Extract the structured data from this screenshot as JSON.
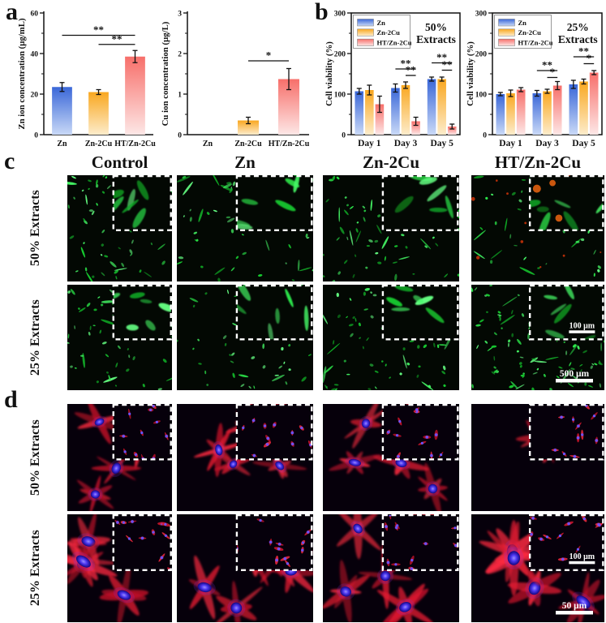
{
  "figure": {
    "panel_a_label": "a",
    "panel_b_label": "b",
    "panel_c_label": "c",
    "panel_d_label": "d",
    "column_headers": [
      "Control",
      "Zn",
      "Zn-2Cu",
      "HT/Zn-2Cu"
    ],
    "row_label_50": "50% Extracts",
    "row_label_25": "25% Extracts"
  },
  "colors": {
    "bar_gradients": {
      "Zn": [
        "#3a67d8",
        "#c9d9f7"
      ],
      "Zn-2Cu": [
        "#f9a71f",
        "#fdeccb"
      ],
      "HT/Zn-2Cu": [
        "#f76f6a",
        "#fde7e6"
      ]
    },
    "axis": "#111111",
    "live_green_palette": [
      "#16c92f",
      "#2be449",
      "#44f564",
      "#0fa824",
      "#63fb80"
    ],
    "dead_red": "#d03408",
    "inset_dead_orange": "#e0600f",
    "actin_red_palette": [
      "#e01830",
      "#c01028",
      "#ff2a40"
    ],
    "nucleus_blue_core": "#9b8cff",
    "nucleus_blue_mid": "#4b36f0",
    "nucleus_blue_edge": "#14077d",
    "scale_bar_white": "#ffffff"
  },
  "chart_data": [
    {
      "id": "zn-ion-concentration",
      "type": "bar",
      "grouped": false,
      "ylabel": "Zn ion concentration (μg/mL)",
      "categories": [
        "Zn",
        "Zn-2Cu",
        "HT/Zn-2Cu"
      ],
      "values": [
        23.5,
        21,
        38.5
      ],
      "errors": [
        2.2,
        1.2,
        3
      ],
      "ylim": [
        0,
        60
      ],
      "yticks": [
        0,
        20,
        40,
        60
      ],
      "minor_step": 10,
      "frame": "axes",
      "significance": [
        {
          "pair": [
            0,
            2
          ],
          "y": 49,
          "label": "**"
        },
        {
          "pair": [
            1,
            2
          ],
          "y": 44.5,
          "label": "**"
        }
      ]
    },
    {
      "id": "cu-ion-concentration",
      "type": "bar",
      "grouped": false,
      "ylabel": "Cu ion concentration (μg/L)",
      "categories": [
        "Zn",
        "Zn-2Cu",
        "HT/Zn-2Cu"
      ],
      "values": [
        0,
        0.35,
        1.37
      ],
      "errors": [
        0,
        0.08,
        0.26
      ],
      "ylim": [
        0,
        3
      ],
      "yticks": [
        0,
        1,
        2,
        3
      ],
      "minor_step": 0.5,
      "frame": "axes",
      "significance": [
        {
          "pair": [
            1,
            2
          ],
          "y": 1.82,
          "label": "*"
        }
      ]
    },
    {
      "id": "cell-viability-50-extracts",
      "type": "bar",
      "grouped": true,
      "ylabel": "Cell viability (%)",
      "categories": [
        "Day 1",
        "Day 3",
        "Day 5"
      ],
      "series": [
        {
          "name": "Zn",
          "values": [
            107,
            115,
            137
          ],
          "errors": [
            7,
            10,
            5
          ]
        },
        {
          "name": "Zn-2Cu",
          "values": [
            110,
            122,
            137
          ],
          "errors": [
            12,
            8,
            5
          ]
        },
        {
          "name": "HT/Zn-2Cu",
          "values": [
            75,
            33,
            20
          ],
          "errors": [
            20,
            10,
            6
          ]
        }
      ],
      "ylim": [
        0,
        300
      ],
      "yticks": [
        0,
        100,
        200,
        300
      ],
      "minor_step": 50,
      "frame": "box",
      "legend": true,
      "legend_position": "top-left",
      "annotation": "50% Extracts",
      "significance": [
        {
          "category": "Day 3",
          "pair": [
            0,
            2
          ],
          "y": 162,
          "label": "**"
        },
        {
          "category": "Day 3",
          "pair": [
            1,
            2
          ],
          "y": 146,
          "label": "**"
        },
        {
          "category": "Day 5",
          "pair": [
            0,
            2
          ],
          "y": 177,
          "label": "**"
        },
        {
          "category": "Day 5",
          "pair": [
            1,
            2
          ],
          "y": 159,
          "label": "**"
        }
      ]
    },
    {
      "id": "cell-viability-25-extracts",
      "type": "bar",
      "grouped": true,
      "ylabel": "Cell viability (%)",
      "categories": [
        "Day 1",
        "Day 3",
        "Day 5"
      ],
      "series": [
        {
          "name": "Zn",
          "values": [
            100,
            102,
            124
          ],
          "errors": [
            4,
            7,
            10
          ]
        },
        {
          "name": "Zn-2Cu",
          "values": [
            102,
            107,
            131
          ],
          "errors": [
            8,
            5,
            6
          ]
        },
        {
          "name": "HT/Zn-2Cu",
          "values": [
            111,
            121,
            153
          ],
          "errors": [
            5,
            10,
            5
          ]
        }
      ],
      "ylim": [
        0,
        300
      ],
      "yticks": [
        0,
        100,
        200,
        300
      ],
      "minor_step": 50,
      "frame": "box",
      "legend": true,
      "legend_position": "top-left",
      "annotation": "25% Extracts",
      "significance": [
        {
          "category": "Day 3",
          "pair": [
            0,
            2
          ],
          "y": 158,
          "label": "**"
        },
        {
          "category": "Day 3",
          "pair": [
            1,
            2
          ],
          "y": 141,
          "label": "*"
        },
        {
          "category": "Day 5",
          "pair": [
            0,
            2
          ],
          "y": 192,
          "label": "**"
        },
        {
          "category": "Day 5",
          "pair": [
            1,
            2
          ],
          "y": 175,
          "label": "*"
        }
      ]
    }
  ],
  "micrographs": [
    {
      "name": "c-50-control",
      "panel": "c",
      "extract": "50% Extracts",
      "sample": "Control",
      "stain": "live-green",
      "density": "medium",
      "inset": true,
      "red_dead_cells": false,
      "scale_bar": null,
      "inset_scale_bar": null,
      "seed": 101
    },
    {
      "name": "c-50-zn",
      "panel": "c",
      "extract": "50% Extracts",
      "sample": "Zn",
      "stain": "live-green",
      "density": "medium",
      "inset": true,
      "red_dead_cells": false,
      "scale_bar": null,
      "inset_scale_bar": null,
      "seed": 102
    },
    {
      "name": "c-50-zn2cu",
      "panel": "c",
      "extract": "50% Extracts",
      "sample": "Zn-2Cu",
      "stain": "live-green",
      "density": "dense",
      "inset": true,
      "red_dead_cells": false,
      "scale_bar": null,
      "inset_scale_bar": null,
      "seed": 103
    },
    {
      "name": "c-50-htzn2cu",
      "panel": "c",
      "extract": "50% Extracts",
      "sample": "HT/Zn-2Cu",
      "stain": "live-green",
      "density": "sparse",
      "inset": true,
      "red_dead_cells": true,
      "scale_bar": null,
      "inset_scale_bar": null,
      "seed": 104
    },
    {
      "name": "c-25-control",
      "panel": "c",
      "extract": "25% Extracts",
      "sample": "Control",
      "stain": "live-green",
      "density": "medium",
      "inset": true,
      "red_dead_cells": false,
      "scale_bar": null,
      "inset_scale_bar": null,
      "seed": 105
    },
    {
      "name": "c-25-zn",
      "panel": "c",
      "extract": "25% Extracts",
      "sample": "Zn",
      "stain": "live-green",
      "density": "medium",
      "inset": true,
      "red_dead_cells": false,
      "scale_bar": null,
      "inset_scale_bar": null,
      "seed": 106
    },
    {
      "name": "c-25-zn2cu",
      "panel": "c",
      "extract": "25% Extracts",
      "sample": "Zn-2Cu",
      "stain": "live-green",
      "density": "dense",
      "inset": true,
      "red_dead_cells": false,
      "scale_bar": null,
      "inset_scale_bar": null,
      "seed": 107
    },
    {
      "name": "c-25-htzn2cu",
      "panel": "c",
      "extract": "25% Extracts",
      "sample": "HT/Zn-2Cu",
      "stain": "live-green",
      "density": "very-dense",
      "inset": true,
      "red_dead_cells": false,
      "scale_bar": "500 μm",
      "inset_scale_bar": "100 μm",
      "seed": 108
    },
    {
      "name": "d-50-control",
      "panel": "d",
      "extract": "50% Extracts",
      "sample": "Control",
      "stain": "actin-red-nuclei-blue",
      "cells": "some",
      "cell_scale": 1,
      "inset": true,
      "scale_bar": null,
      "inset_scale_bar": null,
      "seed": 109
    },
    {
      "name": "d-50-zn",
      "panel": "d",
      "extract": "50% Extracts",
      "sample": "Zn",
      "stain": "actin-red-nuclei-blue",
      "cells": "several",
      "cell_scale": 1,
      "inset": true,
      "scale_bar": null,
      "inset_scale_bar": null,
      "seed": 110
    },
    {
      "name": "d-50-zn2cu",
      "panel": "d",
      "extract": "50% Extracts",
      "sample": "Zn-2Cu",
      "stain": "actin-red-nuclei-blue",
      "cells": "many",
      "cell_scale": 1.05,
      "inset": true,
      "scale_bar": null,
      "inset_scale_bar": null,
      "seed": 111
    },
    {
      "name": "d-50-htzn2cu",
      "panel": "d",
      "extract": "50% Extracts",
      "sample": "HT/Zn-2Cu",
      "stain": "actin-red-nuclei-blue",
      "cells": "few",
      "cell_scale": 1,
      "inset": true,
      "scale_bar": null,
      "inset_scale_bar": null,
      "seed": 112
    },
    {
      "name": "d-25-control",
      "panel": "d",
      "extract": "25% Extracts",
      "sample": "Control",
      "stain": "actin-red-nuclei-blue",
      "cells": "some",
      "cell_scale": 1.35,
      "inset": true,
      "scale_bar": null,
      "inset_scale_bar": null,
      "seed": 113
    },
    {
      "name": "d-25-zn",
      "panel": "d",
      "extract": "25% Extracts",
      "sample": "Zn",
      "stain": "actin-red-nuclei-blue",
      "cells": "several",
      "cell_scale": 1.3,
      "inset": true,
      "scale_bar": null,
      "inset_scale_bar": null,
      "seed": 114
    },
    {
      "name": "d-25-zn2cu",
      "panel": "d",
      "extract": "25% Extracts",
      "sample": "Zn-2Cu",
      "stain": "actin-red-nuclei-blue",
      "cells": "several",
      "cell_scale": 1.25,
      "inset": true,
      "scale_bar": null,
      "inset_scale_bar": null,
      "seed": 115
    },
    {
      "name": "d-25-htzn2cu",
      "panel": "d",
      "extract": "25% Extracts",
      "sample": "HT/Zn-2Cu",
      "stain": "actin-red-nuclei-blue",
      "cells": "some",
      "cell_scale": 1.45,
      "inset": true,
      "scale_bar": "50 μm",
      "inset_scale_bar": "100 μm",
      "seed": 116
    }
  ]
}
